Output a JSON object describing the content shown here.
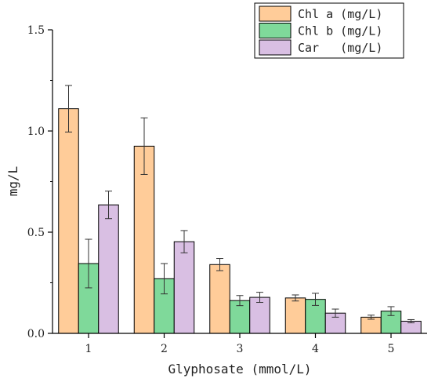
{
  "chart_data": {
    "type": "bar",
    "xlabel": "Glyphosate (mmol/L)",
    "ylabel": "mg/L",
    "categories": [
      "1",
      "2",
      "3",
      "4",
      "5"
    ],
    "ylim": [
      0,
      1.5
    ],
    "yticks": [
      0.0,
      0.5,
      1.0,
      1.5
    ],
    "ytick_labels": [
      "0.0",
      "0.5",
      "1.0",
      "1.5"
    ],
    "grid": false,
    "legend_position": "top-right",
    "series": [
      {
        "name": "Chl a (mg/L)",
        "color": "#FFCC99",
        "values": [
          1.11,
          0.925,
          0.34,
          0.175,
          0.08
        ],
        "errors": [
          0.115,
          0.14,
          0.03,
          0.015,
          0.01
        ]
      },
      {
        "name": "Chl b (mg/L)",
        "color": "#7FD99A",
        "values": [
          0.345,
          0.27,
          0.162,
          0.168,
          0.11
        ],
        "errors": [
          0.12,
          0.075,
          0.025,
          0.03,
          0.022
        ]
      },
      {
        "name": "Car   (mg/L)",
        "color": "#D9BFE3",
        "values": [
          0.635,
          0.453,
          0.178,
          0.1,
          0.06
        ],
        "errors": [
          0.068,
          0.055,
          0.025,
          0.02,
          0.008
        ]
      }
    ]
  }
}
